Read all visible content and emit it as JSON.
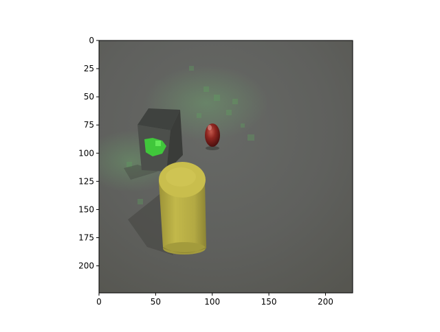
{
  "figure": {
    "x_ticks": [
      "0",
      "50",
      "100",
      "150",
      "200"
    ],
    "y_ticks": [
      "0",
      "25",
      "50",
      "75",
      "100",
      "125",
      "150",
      "175",
      "200"
    ],
    "image_extent": {
      "x": [
        0,
        224
      ],
      "y": [
        224,
        0
      ]
    }
  },
  "scene": {
    "background": "#5f5f5f",
    "objects": [
      {
        "name": "gray-cube",
        "color": "#4a4c4a",
        "note_color": "#3fd43a"
      },
      {
        "name": "red-sphere",
        "color": "#8a1e1a"
      },
      {
        "name": "yellow-cylinder",
        "color": "#b9ad44"
      }
    ],
    "glow_color": "#5a9a5a"
  }
}
